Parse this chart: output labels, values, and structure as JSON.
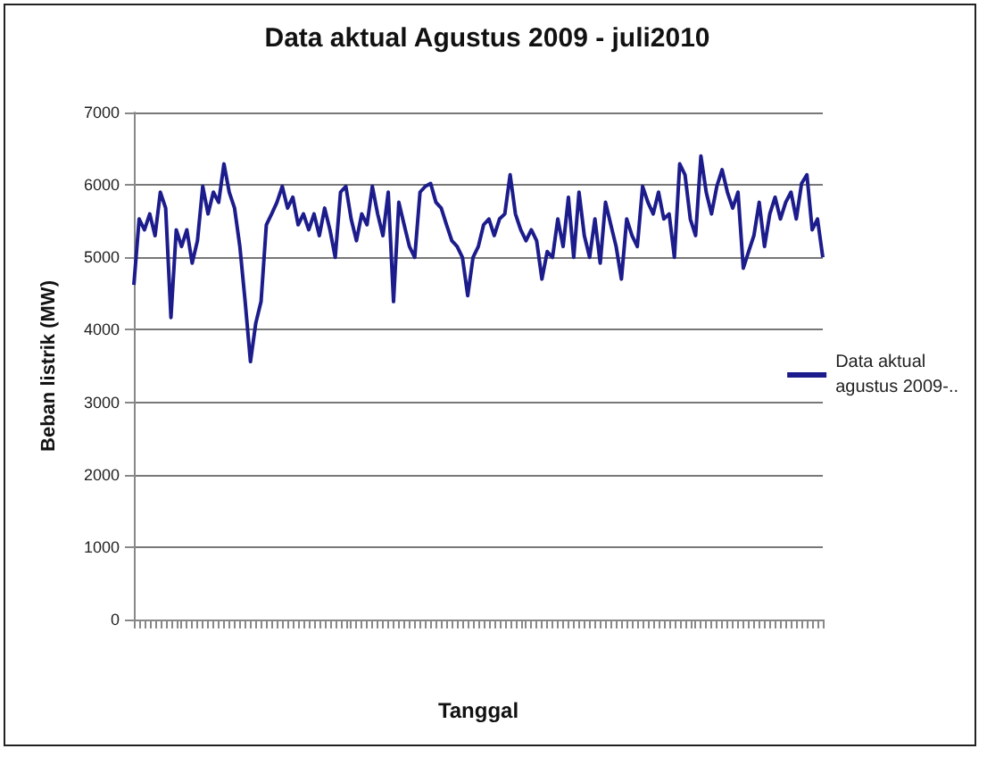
{
  "chart_data": {
    "type": "line",
    "title": "Data aktual Agustus 2009 - juli2010",
    "xlabel": "Tanggal",
    "ylabel": "Beban listrik (MW)",
    "categories": [
      null,
      null,
      null,
      null,
      null,
      null,
      null,
      null,
      null,
      null,
      null,
      null,
      null,
      null,
      null,
      null,
      null,
      null,
      null,
      null,
      null,
      null,
      null,
      null,
      null,
      null,
      null,
      null,
      null,
      null,
      null,
      null,
      null,
      null,
      null,
      null,
      null,
      null,
      null,
      null,
      null,
      null,
      null,
      null,
      null,
      null,
      null,
      null,
      null,
      null,
      null,
      null,
      null,
      null,
      null,
      null,
      null,
      null,
      null,
      null,
      null,
      null,
      null,
      null,
      null,
      null,
      null,
      null,
      null,
      null,
      null,
      null,
      null,
      null,
      null,
      null,
      null,
      null,
      null,
      null,
      null,
      null,
      null,
      null,
      null,
      null,
      null,
      null,
      null,
      null,
      null,
      null,
      null,
      null,
      null,
      null,
      null,
      null,
      null,
      null,
      null,
      null,
      null,
      null,
      null,
      null,
      null,
      null,
      null,
      null,
      null,
      null,
      null,
      null,
      null,
      null,
      null,
      null,
      null,
      null,
      null,
      null,
      null,
      null,
      null,
      null,
      null,
      null,
      null,
      null,
      null
    ],
    "series": [
      {
        "name": "Data aktual agustus 2009-..",
        "color": "#1c1c8c",
        "values": [
          4620,
          5530,
          5380,
          5600,
          5300,
          5900,
          5680,
          4170,
          5380,
          5150,
          5380,
          4920,
          5230,
          5980,
          5600,
          5900,
          5760,
          6290,
          5900,
          5680,
          5150,
          4390,
          3560,
          4090,
          4390,
          5450,
          5600,
          5760,
          5980,
          5680,
          5830,
          5450,
          5600,
          5380,
          5600,
          5300,
          5680,
          5380,
          5000,
          5900,
          5980,
          5530,
          5230,
          5600,
          5450,
          5980,
          5600,
          5300,
          5900,
          4390,
          5760,
          5450,
          5150,
          5000,
          5900,
          5980,
          6020,
          5760,
          5680,
          5450,
          5230,
          5150,
          5000,
          4470,
          5000,
          5150,
          5450,
          5530,
          5300,
          5530,
          5600,
          6140,
          5600,
          5380,
          5230,
          5380,
          5230,
          4700,
          5080,
          5000,
          5530,
          5150,
          5830,
          5000,
          5900,
          5300,
          5000,
          5530,
          4920,
          5760,
          5450,
          5150,
          4700,
          5530,
          5300,
          5150,
          5980,
          5760,
          5600,
          5900,
          5530,
          5600,
          5000,
          6290,
          6140,
          5530,
          5300,
          6400,
          5900,
          5600,
          5980,
          6210,
          5900,
          5680,
          5900,
          4850,
          5080,
          5300,
          5760,
          5150,
          5600,
          5830,
          5530,
          5760,
          5900,
          5530,
          6020,
          6140,
          5380,
          5530,
          5000
        ]
      }
    ],
    "ylim": [
      0,
      7000
    ],
    "yticks": [
      0,
      1000,
      2000,
      3000,
      4000,
      5000,
      6000,
      7000
    ],
    "grid": "y",
    "legend": "right",
    "marker": "none",
    "line_style": "solid"
  }
}
